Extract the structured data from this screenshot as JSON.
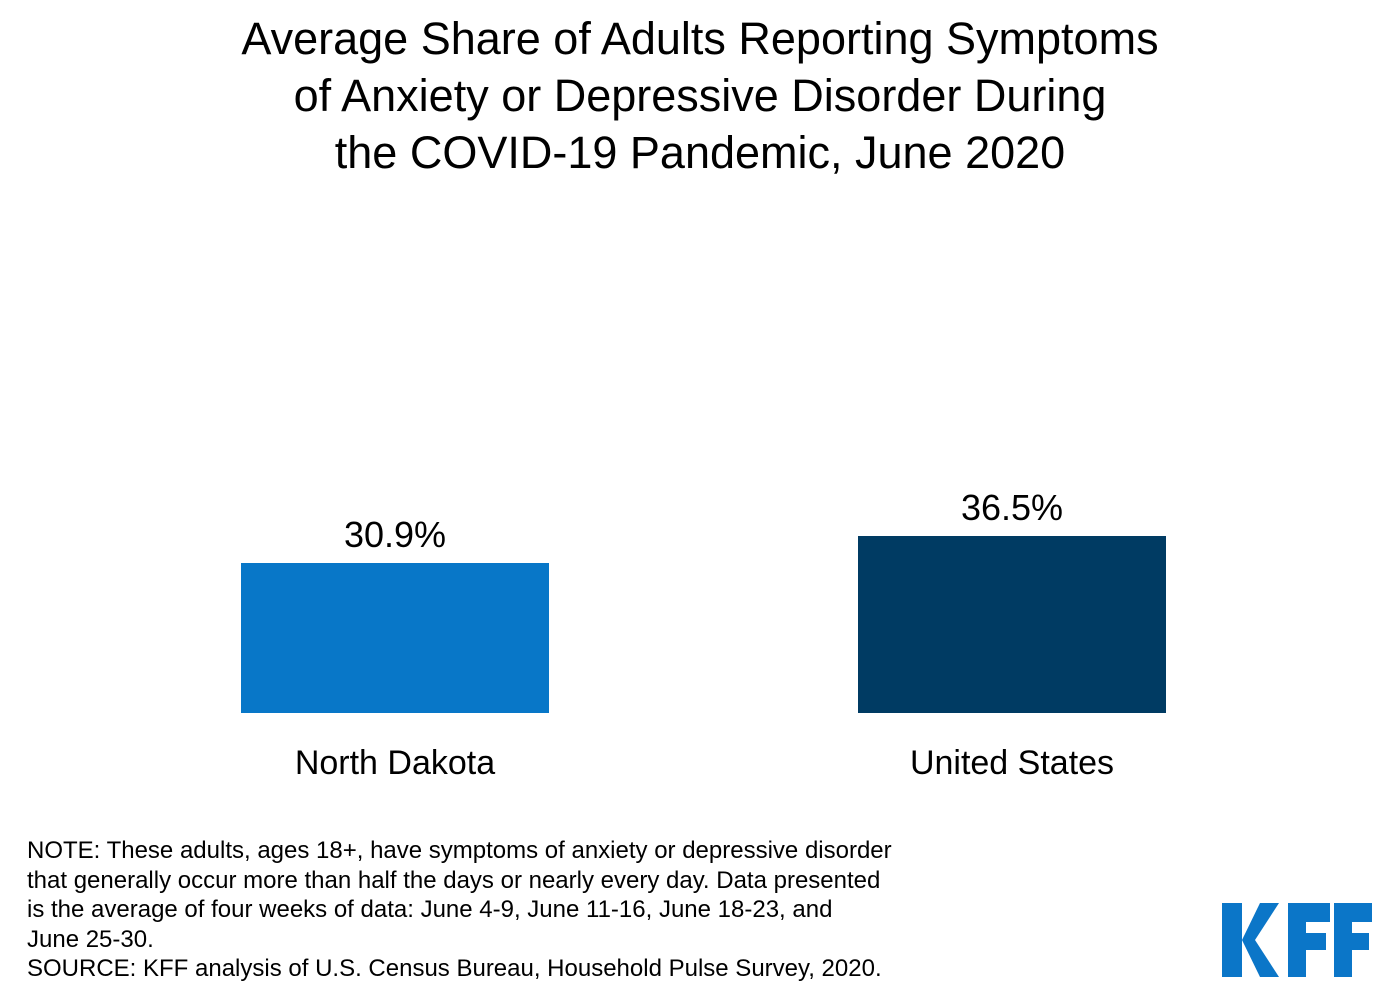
{
  "chart_data": {
    "type": "bar",
    "orientation": "vertical",
    "title": "Average Share of Adults Reporting Symptoms\nof Anxiety or Depressive Disorder During\nthe COVID-19 Pandemic, June 2020",
    "categories": [
      "North Dakota",
      "United States"
    ],
    "values": [
      30.9,
      36.5
    ],
    "value_labels": [
      "30.9%",
      "36.5%"
    ],
    "series_colors": [
      "#0877C8",
      "#003B63"
    ],
    "ylim": [
      0,
      40
    ],
    "grid": false,
    "legend": false,
    "xlabel": "",
    "ylabel": ""
  },
  "note": {
    "text": "NOTE: These adults, ages 18+, have symptoms of anxiety or depressive disorder\nthat generally occur more than half the days or nearly every day. Data presented\nis the average of four weeks of data: June 4-9, June 11-16, June 18-23, and\nJune 25-30.\nSOURCE: KFF analysis of U.S. Census Bureau, Household Pulse Survey, 2020."
  },
  "footer": {
    "logo_text": "KFF",
    "logo_color": "#0B76C8"
  }
}
